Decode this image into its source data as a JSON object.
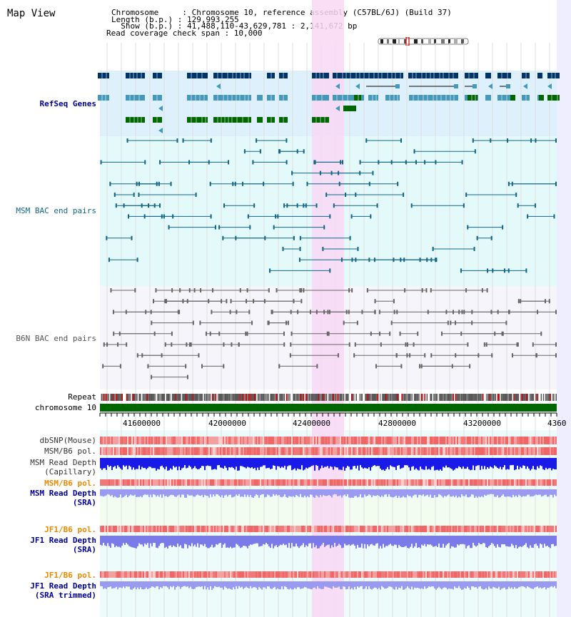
{
  "app": {
    "title": "Map View"
  },
  "info": {
    "line1": "Chromosome     : Chromosome 10, reference assembly (C57BL/6J) (Build 37)",
    "line2": "Length (b.p.) : 129,993,255",
    "line3": "  Show (b.p.) : 41,488,110-43,629,781 : 2,141,672 bp",
    "line4": "Read coverage check span : 10,000"
  },
  "tracks": {
    "refseq": {
      "label": "RefSeq Genes",
      "color": "#000099"
    },
    "msm_bac": {
      "label": "MSM BAC end pairs",
      "color": "#116688"
    },
    "b6n_bac": {
      "label": "B6N BAC end pairs",
      "color": "#555555"
    },
    "repeat": {
      "label": "Repeat",
      "color": "#000000"
    },
    "chromosome": {
      "label": "chromosome 10",
      "color": "#000000"
    },
    "dbsnp": {
      "label": "dbSNP(Mouse)",
      "color": "#333333"
    },
    "msm_pol": {
      "label": "MSM/B6 pol.",
      "color": "#333333"
    },
    "msm_depth_cap": {
      "label1": "MSM Read Depth",
      "label2": "(Capillary)",
      "color": "#333333"
    },
    "msm_pol_sra": {
      "label": "MSM/B6 pol.",
      "color": "#ee8800"
    },
    "msm_depth_sra": {
      "label1": "MSM Read Depth",
      "label2": "(SRA)",
      "color": "#000099"
    },
    "jf1_pol": {
      "label": "JF1/B6 pol.",
      "color": "#ee8800"
    },
    "jf1_depth": {
      "label1": "JF1 Read Depth",
      "label2": "(SRA)",
      "color": "#000099"
    },
    "jf1_pol_trim": {
      "label": "JF1/B6 pol.",
      "color": "#ee8800"
    },
    "jf1_depth_trim": {
      "label1": "JF1 Read Depth",
      "label2": "(SRA trimmed)",
      "color": "#000099"
    }
  },
  "axis": {
    "ticks": [
      "41600000",
      "42000000",
      "42400000",
      "42800000",
      "43200000",
      "4360"
    ]
  },
  "colors": {
    "refseq_bg": "#ddf0fb",
    "msm_bg": "#e4fafa",
    "b6n_bg": "#f5f5fb",
    "highlight": "#f8d8f4",
    "chromosome_bar": "#006600",
    "gene_dark": "#003366",
    "gene_mid": "#4499bb",
    "gene_green": "#006600"
  }
}
